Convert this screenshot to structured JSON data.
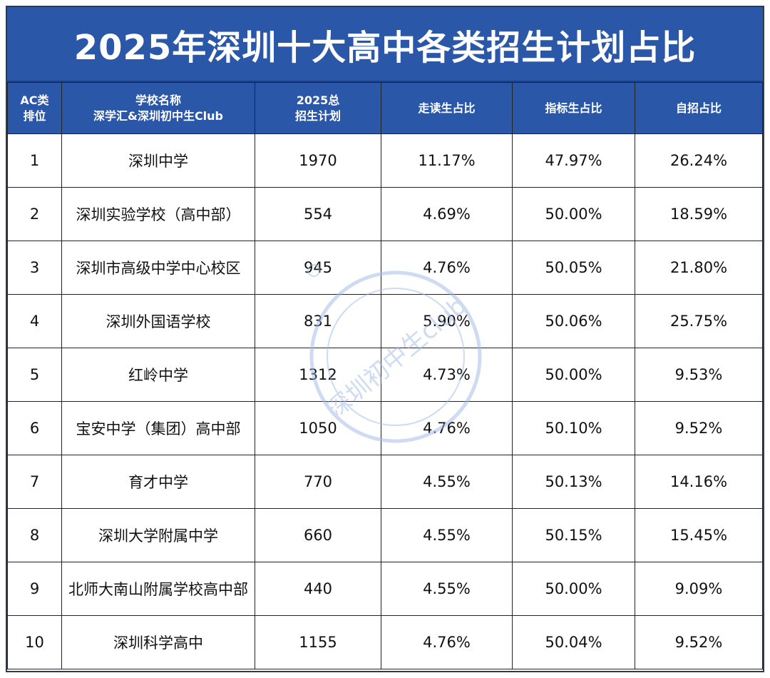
{
  "title": "2025年深圳十大高中各类招生计划占比",
  "headers": {
    "rank_line1": "AC类",
    "rank_line2": "排位",
    "school_line1": "学校名称",
    "school_line2": "深学汇&深圳初中生Club",
    "plan_line1": "2025总",
    "plan_line2": "招生计划",
    "commute": "走读生占比",
    "quota": "指标生占比",
    "self": "自招占比"
  },
  "rows": [
    {
      "rank": "1",
      "school": "深圳中学",
      "plan": "1970",
      "commute": "11.17%",
      "quota": "47.97%",
      "self": "26.24%"
    },
    {
      "rank": "2",
      "school": "深圳实验学校（高中部）",
      "plan": "554",
      "commute": "4.69%",
      "quota": "50.00%",
      "self": "18.59%"
    },
    {
      "rank": "3",
      "school": "深圳市高级中学中心校区",
      "plan": "945",
      "commute": "4.76%",
      "quota": "50.05%",
      "self": "21.80%"
    },
    {
      "rank": "4",
      "school": "深圳外国语学校",
      "plan": "831",
      "commute": "5.90%",
      "quota": "50.06%",
      "self": "25.75%"
    },
    {
      "rank": "5",
      "school": "红岭中学",
      "plan": "1312",
      "commute": "4.73%",
      "quota": "50.00%",
      "self": "9.53%"
    },
    {
      "rank": "6",
      "school": "宝安中学（集团）高中部",
      "plan": "1050",
      "commute": "4.76%",
      "quota": "50.10%",
      "self": "9.52%"
    },
    {
      "rank": "7",
      "school": "育才中学",
      "plan": "770",
      "commute": "4.55%",
      "quota": "50.13%",
      "self": "14.16%"
    },
    {
      "rank": "8",
      "school": "深圳大学附属中学",
      "plan": "660",
      "commute": "4.55%",
      "quota": "50.15%",
      "self": "15.45%"
    },
    {
      "rank": "9",
      "school": "北师大南山附属学校高中部",
      "plan": "440",
      "commute": "4.55%",
      "quota": "50.00%",
      "self": "9.09%"
    },
    {
      "rank": "10",
      "school": "深圳科学高中",
      "plan": "1155",
      "commute": "4.76%",
      "quota": "50.04%",
      "self": "9.52%"
    }
  ],
  "watermark_text": "深圳初中生club",
  "colors": {
    "header_blue": "#2b57a8",
    "grid": "#222222",
    "watermark": "#9fb8e6"
  }
}
